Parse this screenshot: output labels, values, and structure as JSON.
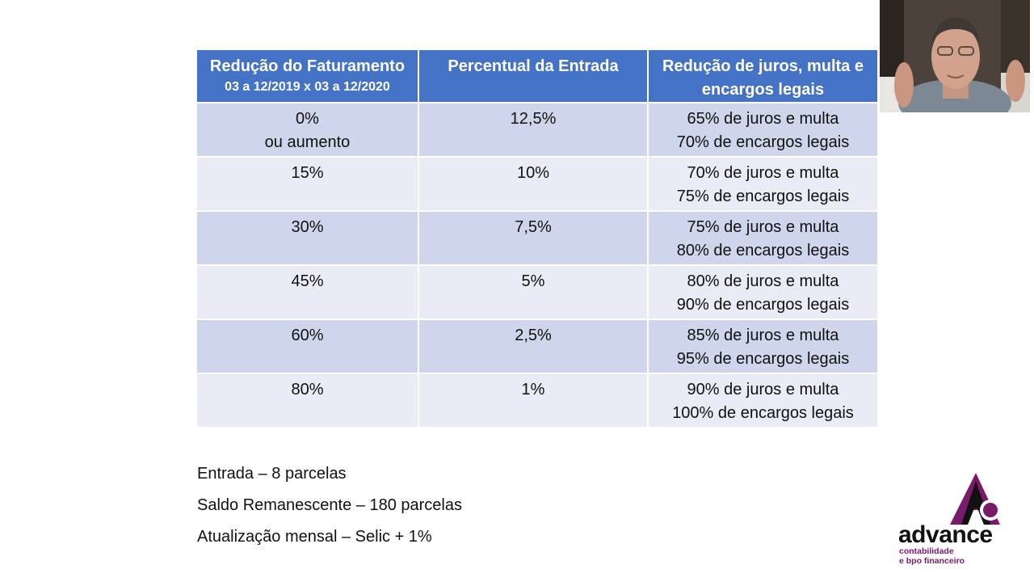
{
  "table": {
    "headers": [
      {
        "title": "Redução do Faturamento",
        "subtitle": "03 a 12/2019 x 03 a 12/2020"
      },
      {
        "title": "Percentual da Entrada",
        "subtitle": ""
      },
      {
        "title": "Redução de juros, multa e encargos legais",
        "subtitle": ""
      }
    ],
    "rows": [
      {
        "reducao": [
          "0%",
          "ou aumento"
        ],
        "entrada": "12,5%",
        "beneficio": [
          "65% de juros e multa",
          "70% de encargos legais"
        ]
      },
      {
        "reducao": [
          "15%"
        ],
        "entrada": "10%",
        "beneficio": [
          "70% de juros e multa",
          "75% de encargos legais"
        ]
      },
      {
        "reducao": [
          "30%"
        ],
        "entrada": "7,5%",
        "beneficio": [
          "75% de juros e multa",
          "80% de encargos legais"
        ]
      },
      {
        "reducao": [
          "45%"
        ],
        "entrada": "5%",
        "beneficio": [
          "80% de juros e multa",
          "90% de encargos legais"
        ]
      },
      {
        "reducao": [
          "60%"
        ],
        "entrada": "2,5%",
        "beneficio": [
          "85% de juros e multa",
          "95% de encargos legais"
        ]
      },
      {
        "reducao": [
          "80%"
        ],
        "entrada": "1%",
        "beneficio": [
          "90% de juros e multa",
          "100% de encargos legais"
        ]
      }
    ]
  },
  "notes": [
    "Entrada – 8 parcelas",
    "Saldo Remanescente – 180 parcelas",
    "Atualização mensal – Selic + 1%"
  ],
  "logo": {
    "brand": "advance",
    "tagline_1": "contabilidade",
    "tagline_2": "e bpo financeiro"
  },
  "colors": {
    "header": "#4472c4",
    "row_odd": "#cfd5ea",
    "row_even": "#e9ebf5",
    "logo_accent": "#7a1a6a"
  },
  "icons": {
    "webcam": "presenter-video",
    "logo_mark": "advance-a-mark"
  }
}
